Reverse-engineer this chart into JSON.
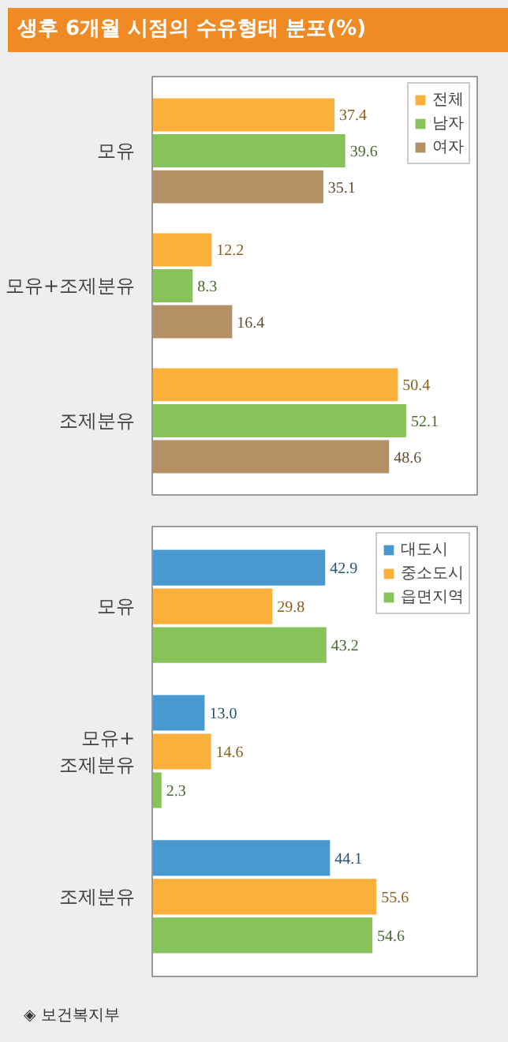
{
  "chart_data": [
    {
      "type": "bar",
      "orientation": "horizontal",
      "title": "생후 6개월 시점의 수유형태 분포(%)",
      "categories": [
        "모유",
        "모유+조제분유",
        "조제분유"
      ],
      "series": [
        {
          "name": "전체",
          "color": "#fbb03b",
          "values": [
            37.4,
            12.2,
            50.4
          ]
        },
        {
          "name": "남자",
          "color": "#86c35a",
          "values": [
            39.6,
            8.3,
            52.1
          ]
        },
        {
          "name": "여자",
          "color": "#b49064",
          "values": [
            35.1,
            16.4,
            48.6
          ]
        }
      ],
      "data_labels": true,
      "legend": "top right",
      "grid": false
    },
    {
      "type": "bar",
      "orientation": "horizontal",
      "categories": [
        "모유",
        "모유+\n조제분유",
        "조제분유"
      ],
      "series": [
        {
          "name": "대도시",
          "color": "#4a98d0",
          "values": [
            42.9,
            13.0,
            44.1
          ],
          "value_labels": [
            "42.9",
            "13.0",
            "44.1"
          ]
        },
        {
          "name": "중소도시",
          "color": "#fbb03b",
          "values": [
            29.8,
            14.6,
            55.6
          ],
          "value_labels": [
            "29.8",
            "14.6",
            "55.6"
          ]
        },
        {
          "name": "읍면지역",
          "color": "#86c35a",
          "values": [
            43.2,
            2.3,
            54.6
          ],
          "value_labels": [
            "43.2",
            "2.3",
            "54.6"
          ]
        }
      ],
      "legend": "top right",
      "grid": false,
      "annotations": [
        "◈ 보건복지부"
      ]
    }
  ]
}
